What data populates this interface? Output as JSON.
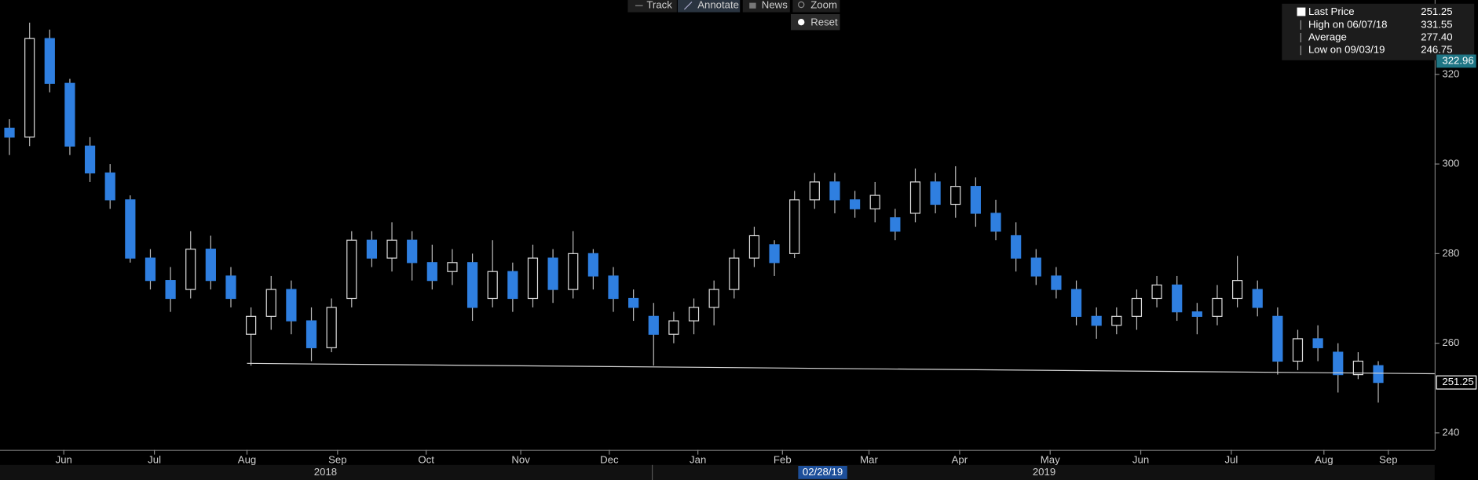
{
  "chart_data": {
    "type": "candlestick",
    "categories": [
      null,
      null,
      null,
      null,
      null,
      null,
      null,
      null,
      null,
      null,
      null,
      null,
      null,
      null,
      null,
      null,
      null,
      null,
      null,
      null,
      null,
      null,
      null,
      null,
      null,
      null,
      null,
      null,
      null,
      null,
      null,
      null,
      null,
      null,
      null,
      null,
      null,
      null,
      null,
      null,
      null,
      null,
      null,
      null,
      null,
      null,
      null,
      null,
      null,
      null,
      null,
      null,
      null,
      null,
      null,
      null,
      null,
      null,
      null,
      null,
      null,
      null,
      null,
      null,
      null,
      null,
      null,
      null,
      null
    ],
    "open": [
      308,
      306,
      328,
      318,
      304,
      298,
      292,
      279,
      274,
      272,
      281,
      275,
      262,
      266,
      272,
      265,
      259,
      270,
      283,
      279,
      283,
      278,
      276,
      278,
      270,
      276,
      270,
      279,
      272,
      280,
      275,
      270,
      266,
      262,
      265,
      268,
      272,
      279,
      282,
      280,
      292,
      296,
      292,
      290,
      288,
      289,
      296,
      291,
      295,
      289,
      284,
      279,
      275,
      272,
      266,
      264,
      266,
      270,
      273,
      267,
      266,
      270,
      272,
      266,
      256,
      261,
      258,
      253,
      255
    ],
    "high": [
      310,
      331.55,
      330,
      319,
      306,
      300,
      293,
      281,
      277,
      285,
      284,
      277,
      268,
      275,
      274,
      268,
      270,
      285,
      285,
      287,
      285,
      282,
      281,
      280,
      283,
      278,
      282,
      281,
      285,
      281,
      277,
      272,
      269,
      267,
      270,
      274,
      281,
      286,
      283,
      294,
      298,
      298,
      294,
      296,
      290,
      299,
      298,
      299.5,
      297,
      292,
      287,
      281,
      277,
      274,
      268,
      268,
      272,
      275,
      275,
      269,
      273,
      279.5,
      274,
      268,
      263,
      264,
      260,
      258,
      256
    ],
    "low": [
      302,
      304,
      316,
      302,
      296,
      290,
      278,
      272,
      267,
      270,
      272,
      268,
      255,
      263,
      262,
      256,
      258,
      268,
      277,
      276,
      274,
      272,
      273,
      265,
      268,
      267,
      268,
      269,
      270,
      272,
      267,
      265,
      255,
      260,
      262,
      264,
      270,
      277,
      275,
      279,
      290,
      289,
      288,
      287,
      283,
      287,
      289,
      288,
      286,
      283,
      276,
      273,
      270,
      264,
      261,
      262,
      263,
      268,
      265,
      262,
      264,
      268,
      266,
      253,
      254,
      256,
      249,
      252,
      246.75
    ],
    "close": [
      306,
      328,
      318,
      304,
      298,
      292,
      279,
      274,
      270,
      281,
      274,
      270,
      266,
      272,
      265,
      259,
      268,
      283,
      279,
      283,
      278,
      274,
      278,
      268,
      276,
      270,
      279,
      272,
      280,
      275,
      270,
      268,
      262,
      265,
      268,
      272,
      279,
      284,
      278,
      292,
      296,
      292,
      290,
      293,
      285,
      296,
      291,
      295,
      289,
      285,
      279,
      275,
      272,
      266,
      264,
      266,
      270,
      273,
      267,
      266,
      270,
      274,
      268,
      256,
      261,
      259,
      253,
      256,
      251.25
    ],
    "up_color": "#000000",
    "up_edge": "#dddddd",
    "down_color": "#2f7fe0",
    "wick_color": "#bbbbbb",
    "xlim": [
      -0.47,
      70.8
    ],
    "ylim": [
      236.2,
      336.6
    ],
    "yticks": [
      240,
      260,
      280,
      300,
      320
    ],
    "xticks": [
      {
        "value": 2.7,
        "label": "Jun"
      },
      {
        "value": 7.2,
        "label": "Jul"
      },
      {
        "value": 11.8,
        "label": "Aug"
      },
      {
        "value": 16.3,
        "label": "Sep"
      },
      {
        "value": 20.7,
        "label": "Oct"
      },
      {
        "value": 25.4,
        "label": "Nov"
      },
      {
        "value": 29.8,
        "label": "Dec"
      },
      {
        "value": 34.2,
        "label": "Jan"
      },
      {
        "value": 38.4,
        "label": "Feb"
      },
      {
        "value": 42.7,
        "label": "Mar"
      },
      {
        "value": 47.2,
        "label": "Apr"
      },
      {
        "value": 51.7,
        "label": "May"
      },
      {
        "value": 56.2,
        "label": "Jun"
      },
      {
        "value": 60.7,
        "label": "Jul"
      },
      {
        "value": 65.3,
        "label": "Aug"
      },
      {
        "value": 68.5,
        "label": "Sep"
      }
    ],
    "year_ticks": [
      {
        "value": 15.7,
        "label": "2018"
      },
      {
        "value": 51.4,
        "label": "2019"
      }
    ],
    "cursor": {
      "value": 40.4,
      "label": "02/28/19"
    },
    "trendline": {
      "x": [
        11.8,
        70.8
      ],
      "y": [
        255.5,
        253.2
      ]
    },
    "last_price_marker": 251.25,
    "top_marker": 322.96,
    "stats": {
      "names": [
        "Last Price",
        "High on 06/07/18",
        "Average",
        "Low on 09/03/19"
      ],
      "values": [
        251.25,
        331.55,
        277.4,
        246.75
      ],
      "value_labels": [
        "251.25",
        "331.55",
        "277.40",
        "246.75"
      ]
    }
  },
  "toolbar": [
    "Track",
    "Annotate",
    "News",
    "Zoom",
    "Reset"
  ]
}
